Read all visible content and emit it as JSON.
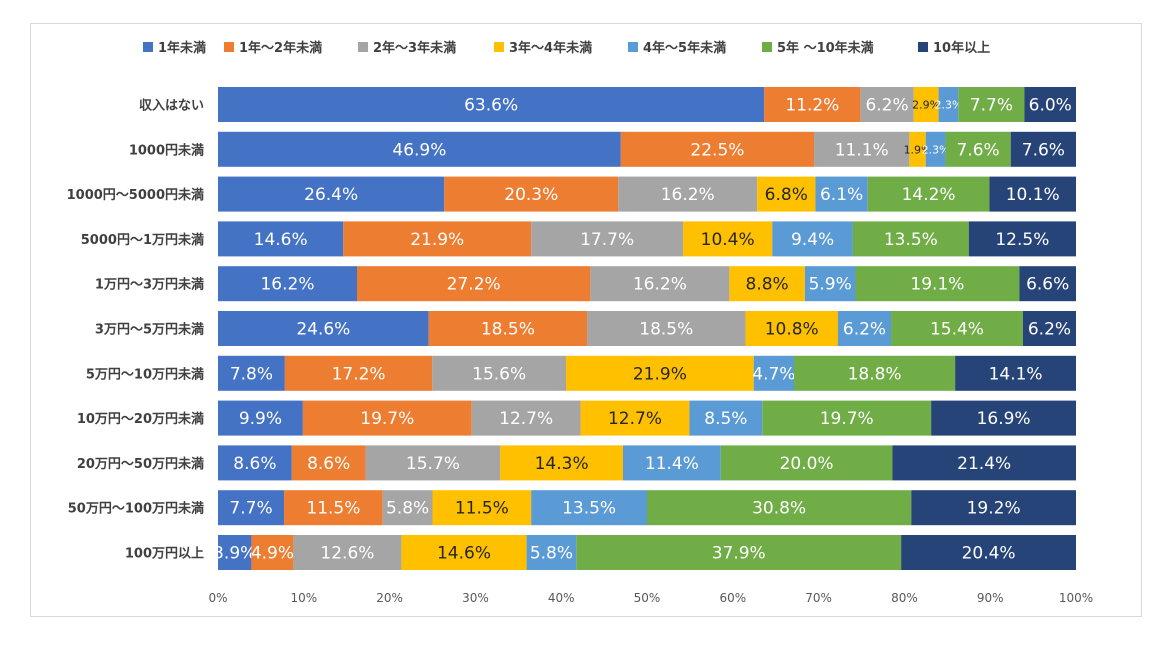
{
  "chart_data": {
    "type": "bar",
    "orientation": "horizontal",
    "stacked": "percent",
    "categories": [
      "収入はない",
      "1000円未満",
      "1000円～5000円未満",
      "5000円～1万円未満",
      "1万円～3万円未満",
      "3万円～5万円未満",
      "5万円～10万円未満",
      "10万円～20万円未満",
      "20万円～50万円未満",
      "50万円～100万円未満",
      "100万円以上"
    ],
    "series": [
      {
        "name": "1年未満",
        "color": "#4472c4",
        "label_color": "#ffffff",
        "values": [
          63.6,
          46.9,
          26.4,
          14.6,
          16.2,
          24.6,
          7.8,
          9.9,
          8.6,
          7.7,
          3.9
        ]
      },
      {
        "name": "1年～2年未満",
        "color": "#ed7d31",
        "label_color": "#ffffff",
        "values": [
          11.2,
          22.5,
          20.3,
          21.9,
          27.2,
          18.5,
          17.2,
          19.7,
          8.6,
          11.5,
          4.9
        ]
      },
      {
        "name": "2年～3年未満",
        "color": "#a5a5a5",
        "label_color": "#ffffff",
        "values": [
          6.2,
          11.1,
          16.2,
          17.7,
          16.2,
          18.5,
          15.6,
          12.7,
          15.7,
          5.8,
          12.6
        ]
      },
      {
        "name": "3年～4年未満",
        "color": "#ffc000",
        "label_color": "#262626",
        "values": [
          2.9,
          1.9,
          6.8,
          10.4,
          8.8,
          10.8,
          21.9,
          12.7,
          14.3,
          11.5,
          14.6
        ]
      },
      {
        "name": "4年～5年未満",
        "color": "#5b9bd5",
        "label_color": "#ffffff",
        "values": [
          2.3,
          2.3,
          6.1,
          9.4,
          5.9,
          6.2,
          4.7,
          8.5,
          11.4,
          13.5,
          5.8
        ]
      },
      {
        "name": "5年 ～10年未満",
        "color": "#70ad47",
        "label_color": "#ffffff",
        "values": [
          7.7,
          7.6,
          14.2,
          13.5,
          19.1,
          15.4,
          18.8,
          19.7,
          20.0,
          30.8,
          37.9
        ]
      },
      {
        "name": "10年以上",
        "color": "#264478",
        "label_color": "#ffffff",
        "values": [
          6.0,
          7.6,
          10.1,
          12.5,
          6.6,
          6.2,
          14.1,
          16.9,
          21.4,
          19.2,
          20.4
        ]
      }
    ],
    "x_ticks": [
      "0%",
      "10%",
      "20%",
      "30%",
      "40%",
      "50%",
      "60%",
      "70%",
      "80%",
      "90%",
      "100%"
    ],
    "xlim": [
      0,
      100
    ],
    "legend_position": "top",
    "grid": false
  }
}
